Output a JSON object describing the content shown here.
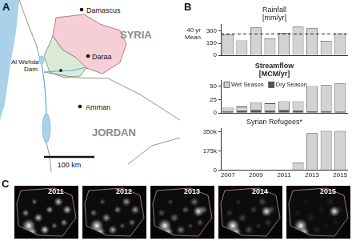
{
  "panel_labels": [
    "A",
    "B",
    "C"
  ],
  "map": {
    "labels": [
      "Damascus",
      "SYRIA",
      "Al Wehda",
      "Dam",
      "Daraa",
      "Amman",
      "JORDAN"
    ],
    "scale_bar": "100 km"
  },
  "chart_data": [
    {
      "type": "bar",
      "title": [
        "Rainfall",
        "[mm/yr]"
      ],
      "categories": [
        "2007",
        null,
        "2009",
        null,
        "2011",
        null,
        "2013",
        null,
        "2015"
      ],
      "values": [
        260,
        185,
        345,
        210,
        280,
        355,
        335,
        180,
        275
      ],
      "color": "#d3d3d3",
      "ylim": [
        0,
        380
      ],
      "yticks": [
        0,
        150,
        300
      ],
      "grid": false,
      "tick_labels": "y",
      "annotations": [
        {
          "type": "line",
          "value": 265,
          "label": [
            "40 yr",
            "Mean"
          ]
        }
      ]
    },
    {
      "type": "bar",
      "title": [
        "Streamflow",
        "[MCM/yr]"
      ],
      "categories": [
        "2007",
        null,
        "2009",
        null,
        "2011",
        null,
        "2013",
        null,
        "2015"
      ],
      "series": [
        {
          "name": "Wet Season",
          "color": "#d3d3d3",
          "values": [
            6,
            7,
            14,
            13,
            16,
            17,
            46,
            48,
            52
          ]
        },
        {
          "name": "Dry Season",
          "color": "#555555",
          "values": [
            4,
            5,
            6,
            5,
            6,
            5,
            4,
            4,
            3
          ]
        }
      ],
      "stacked": true,
      "legend": "top-left",
      "ylim": [
        0,
        60
      ],
      "yticks": [
        0,
        25,
        50
      ],
      "grid": false,
      "tick_labels": "y"
    },
    {
      "type": "bar",
      "title": "Syrian Refugees*",
      "categories": [
        "2007",
        null,
        "2009",
        null,
        "2011",
        null,
        "2013",
        null,
        "2015"
      ],
      "values": [
        0,
        0,
        0,
        0,
        0,
        70000,
        340000,
        360000,
        360000
      ],
      "color": "#d3d3d3",
      "ylim": [
        0,
        380000
      ],
      "yticks": [
        0,
        {
          "value": 175000,
          "label": "175k"
        },
        {
          "value": 350000,
          "label": "350k"
        }
      ],
      "grid": false
    }
  ],
  "images": {
    "labels": [
      "2011",
      "2012",
      "2013",
      "2014",
      "2015"
    ]
  }
}
